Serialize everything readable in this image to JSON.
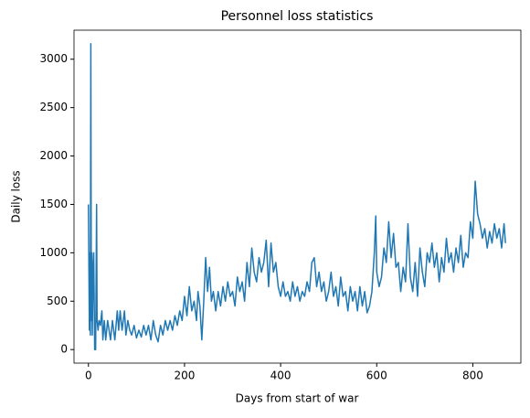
{
  "chart_data": {
    "type": "line",
    "title": "Personnel loss statistics",
    "x_label": "Days from start of war",
    "y_label": "Daily loss",
    "color": "#1f77b4",
    "xlim": [
      -30,
      900
    ],
    "ylim": [
      -140,
      3300
    ],
    "xticks": [
      0,
      200,
      400,
      600,
      800
    ],
    "yticks": [
      0,
      500,
      1000,
      1500,
      2000,
      2500,
      3000
    ],
    "x": [
      0,
      2,
      3,
      4,
      5,
      6,
      7,
      8,
      10,
      11,
      13,
      15,
      17,
      18,
      20,
      22,
      25,
      28,
      30,
      33,
      36,
      40,
      43,
      46,
      50,
      55,
      60,
      63,
      66,
      70,
      75,
      78,
      82,
      86,
      90,
      95,
      100,
      105,
      110,
      115,
      120,
      125,
      130,
      135,
      140,
      145,
      150,
      155,
      160,
      165,
      170,
      175,
      180,
      185,
      190,
      195,
      200,
      205,
      210,
      215,
      220,
      225,
      228,
      232,
      236,
      240,
      244,
      248,
      252,
      256,
      260,
      265,
      270,
      275,
      280,
      285,
      290,
      295,
      300,
      305,
      310,
      315,
      320,
      325,
      330,
      335,
      340,
      345,
      350,
      355,
      360,
      365,
      370,
      375,
      380,
      385,
      390,
      395,
      400,
      405,
      410,
      415,
      420,
      425,
      430,
      435,
      440,
      445,
      450,
      455,
      460,
      465,
      470,
      475,
      480,
      485,
      490,
      495,
      500,
      505,
      510,
      515,
      520,
      525,
      530,
      535,
      540,
      545,
      550,
      555,
      560,
      565,
      570,
      575,
      580,
      585,
      590,
      595,
      598,
      600,
      605,
      610,
      615,
      620,
      625,
      630,
      635,
      640,
      645,
      650,
      655,
      660,
      665,
      670,
      675,
      680,
      685,
      690,
      695,
      700,
      705,
      710,
      715,
      720,
      725,
      730,
      735,
      740,
      745,
      750,
      755,
      760,
      765,
      770,
      775,
      780,
      785,
      790,
      795,
      800,
      805,
      810,
      815,
      820,
      825,
      830,
      835,
      840,
      845,
      850,
      855,
      860,
      865,
      868
    ],
    "values": [
      1500,
      200,
      1000,
      150,
      3160,
      300,
      1000,
      150,
      900,
      1000,
      0,
      0,
      1500,
      300,
      200,
      300,
      250,
      400,
      100,
      300,
      100,
      300,
      200,
      100,
      300,
      100,
      400,
      200,
      400,
      200,
      400,
      150,
      300,
      200,
      150,
      250,
      120,
      200,
      130,
      250,
      150,
      250,
      100,
      300,
      150,
      80,
      250,
      150,
      300,
      200,
      300,
      200,
      350,
      250,
      400,
      300,
      550,
      350,
      650,
      400,
      500,
      300,
      600,
      450,
      100,
      500,
      950,
      600,
      850,
      500,
      600,
      400,
      600,
      450,
      650,
      500,
      700,
      550,
      600,
      450,
      750,
      600,
      700,
      500,
      900,
      650,
      1050,
      800,
      700,
      950,
      800,
      900,
      1130,
      650,
      1100,
      800,
      900,
      650,
      550,
      700,
      550,
      600,
      500,
      700,
      550,
      650,
      500,
      600,
      550,
      700,
      600,
      900,
      950,
      650,
      800,
      600,
      700,
      500,
      600,
      800,
      550,
      650,
      450,
      750,
      550,
      600,
      400,
      650,
      500,
      600,
      400,
      650,
      450,
      600,
      380,
      450,
      600,
      1000,
      1380,
      800,
      650,
      750,
      1050,
      900,
      1320,
      950,
      1200,
      850,
      900,
      600,
      850,
      700,
      1300,
      750,
      600,
      900,
      550,
      1050,
      800,
      650,
      1000,
      900,
      1100,
      850,
      1000,
      700,
      950,
      800,
      1150,
      900,
      1000,
      800,
      1050,
      900,
      1180,
      850,
      1000,
      950,
      1320,
      1150,
      1740,
      1400,
      1300,
      1150,
      1250,
      1050,
      1220,
      1100,
      1300,
      1150,
      1250,
      1050,
      1300,
      1100
    ]
  }
}
